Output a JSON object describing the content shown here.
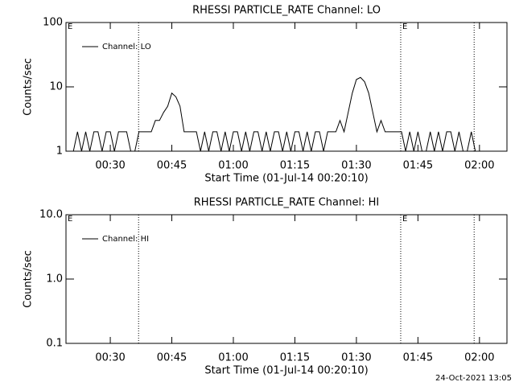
{
  "chart_data": [
    {
      "type": "line",
      "title": "RHESSI PARTICLE_RATE Channel: LO",
      "xlabel": "Start Time (01-Jul-14 00:20:10)",
      "ylabel": "Counts/sec",
      "log_y": true,
      "color": "#000000",
      "xlim": [
        19.2,
        126.7
      ],
      "xticks": [
        {
          "value": 30,
          "label": "00:30"
        },
        {
          "value": 45,
          "label": "00:45"
        },
        {
          "value": 60,
          "label": "01:00"
        },
        {
          "value": 75,
          "label": "01:15"
        },
        {
          "value": 90,
          "label": "01:30"
        },
        {
          "value": 105,
          "label": "01:45"
        },
        {
          "value": 120,
          "label": "02:00"
        }
      ],
      "ylim": [
        1,
        100
      ],
      "yticks": [
        1,
        10,
        100
      ],
      "vlines": [
        36.9,
        100.8,
        118.7
      ],
      "annotations": [
        {
          "text": "E",
          "x": 19.2
        },
        {
          "text": "E",
          "x": 100.8
        }
      ],
      "x": [
        21,
        22,
        23,
        24,
        25,
        26,
        27,
        28,
        29,
        30,
        31,
        32,
        33,
        34,
        35,
        36,
        37,
        38,
        39,
        40,
        41,
        42,
        43,
        44,
        45,
        46,
        47,
        48,
        49,
        50,
        51,
        52,
        53,
        54,
        55,
        56,
        57,
        58,
        59,
        60,
        61,
        62,
        63,
        64,
        65,
        66,
        67,
        68,
        69,
        70,
        71,
        72,
        73,
        74,
        75,
        76,
        77,
        78,
        79,
        80,
        81,
        82,
        83,
        84,
        85,
        86,
        87,
        88,
        89,
        90,
        91,
        92,
        93,
        94,
        95,
        96,
        97,
        98,
        99,
        100,
        101,
        102,
        103,
        104,
        105,
        106,
        107,
        108,
        109,
        110,
        111,
        112,
        113,
        114,
        115,
        116,
        117,
        118,
        119
      ],
      "series": [
        {
          "name": "Channel: LO",
          "color": "#000000",
          "values": [
            1,
            2,
            1,
            2,
            1,
            2,
            2,
            1,
            2,
            2,
            1,
            2,
            2,
            2,
            1,
            1,
            2,
            2,
            2,
            2,
            3,
            3,
            4,
            5,
            8,
            7,
            5,
            2,
            2,
            2,
            2,
            1,
            2,
            1,
            2,
            2,
            1,
            2,
            1,
            2,
            2,
            1,
            2,
            1,
            2,
            2,
            1,
            2,
            1,
            2,
            2,
            1,
            2,
            1,
            2,
            2,
            1,
            2,
            1,
            2,
            2,
            1,
            2,
            2,
            2,
            3,
            2,
            4,
            8,
            13,
            14,
            12,
            8,
            4,
            2,
            3,
            2,
            2,
            2,
            2,
            2,
            1,
            2,
            1,
            2,
            1,
            1,
            2,
            1,
            2,
            1,
            2,
            2,
            1,
            2,
            1,
            1,
            2,
            1
          ]
        }
      ]
    },
    {
      "type": "line",
      "title": "RHESSI PARTICLE_RATE Channel: HI",
      "xlabel": "Start Time (01-Jul-14 00:20:10)",
      "ylabel": "Counts/sec",
      "log_y": true,
      "color": "#000000",
      "xlim": [
        19.2,
        126.7
      ],
      "xticks": [
        {
          "value": 30,
          "label": "00:30"
        },
        {
          "value": 45,
          "label": "00:45"
        },
        {
          "value": 60,
          "label": "01:00"
        },
        {
          "value": 75,
          "label": "01:15"
        },
        {
          "value": 90,
          "label": "01:30"
        },
        {
          "value": 105,
          "label": "01:45"
        },
        {
          "value": 120,
          "label": "02:00"
        }
      ],
      "ylim": [
        0.1,
        10
      ],
      "yticks": [
        0.1,
        {
          "value": 1,
          "label": "1.0"
        },
        {
          "value": 10,
          "label": "10.0"
        }
      ],
      "vlines": [
        36.9,
        100.8,
        118.7
      ],
      "annotations": [
        {
          "text": "E",
          "x": 19.2
        },
        {
          "text": "E",
          "x": 100.8
        }
      ],
      "x": [],
      "series": [
        {
          "name": "Channel: HI",
          "color": "#000000",
          "values": []
        }
      ]
    }
  ],
  "footer": "24-Oct-2021 13:05"
}
